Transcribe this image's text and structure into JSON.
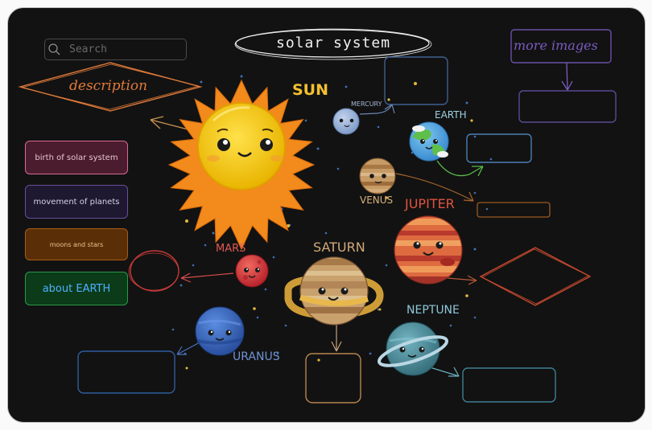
{
  "title": "solar system",
  "search": {
    "placeholder": "Search"
  },
  "description_label": "description",
  "more_images_label": "more images",
  "menu": [
    {
      "label": "birth of solar system",
      "border": "#d86a96",
      "bg": "#4a1c2d",
      "color": "#e5c3d0"
    },
    {
      "label": "movement of planets",
      "border": "#6a4f9c",
      "bg": "#1e1830",
      "color": "#d8d0ea"
    },
    {
      "label": "moons and stars",
      "border": "#a65c14",
      "bg": "#5a2f08",
      "color": "#ecc18a"
    },
    {
      "label": "about EARTH",
      "border": "#2a9a48",
      "bg": "#0b3b18",
      "color": "#4fb0ff"
    }
  ],
  "planets": {
    "sun": "SUN",
    "mercury": "MERCURY",
    "earth": "EARTH",
    "venus": "VENUS",
    "jupiter": "JUPITER",
    "mars": "MARS",
    "saturn": "SATURN",
    "neptune": "NEPTUNE",
    "uranus": "URANUS"
  },
  "colors": {
    "sun_label": "#f2c12e",
    "mercury_label": "#a6b8d2",
    "earth_label": "#9fd2e2",
    "venus_label": "#d9b37b",
    "jupiter_label": "#e0543e",
    "mars_label": "#e05a55",
    "saturn_label": "#d2a97a",
    "neptune_label": "#8fc6d8",
    "uranus_label": "#6f93d4",
    "description": "#e07a3a",
    "more_images": "#7a5bbf"
  }
}
